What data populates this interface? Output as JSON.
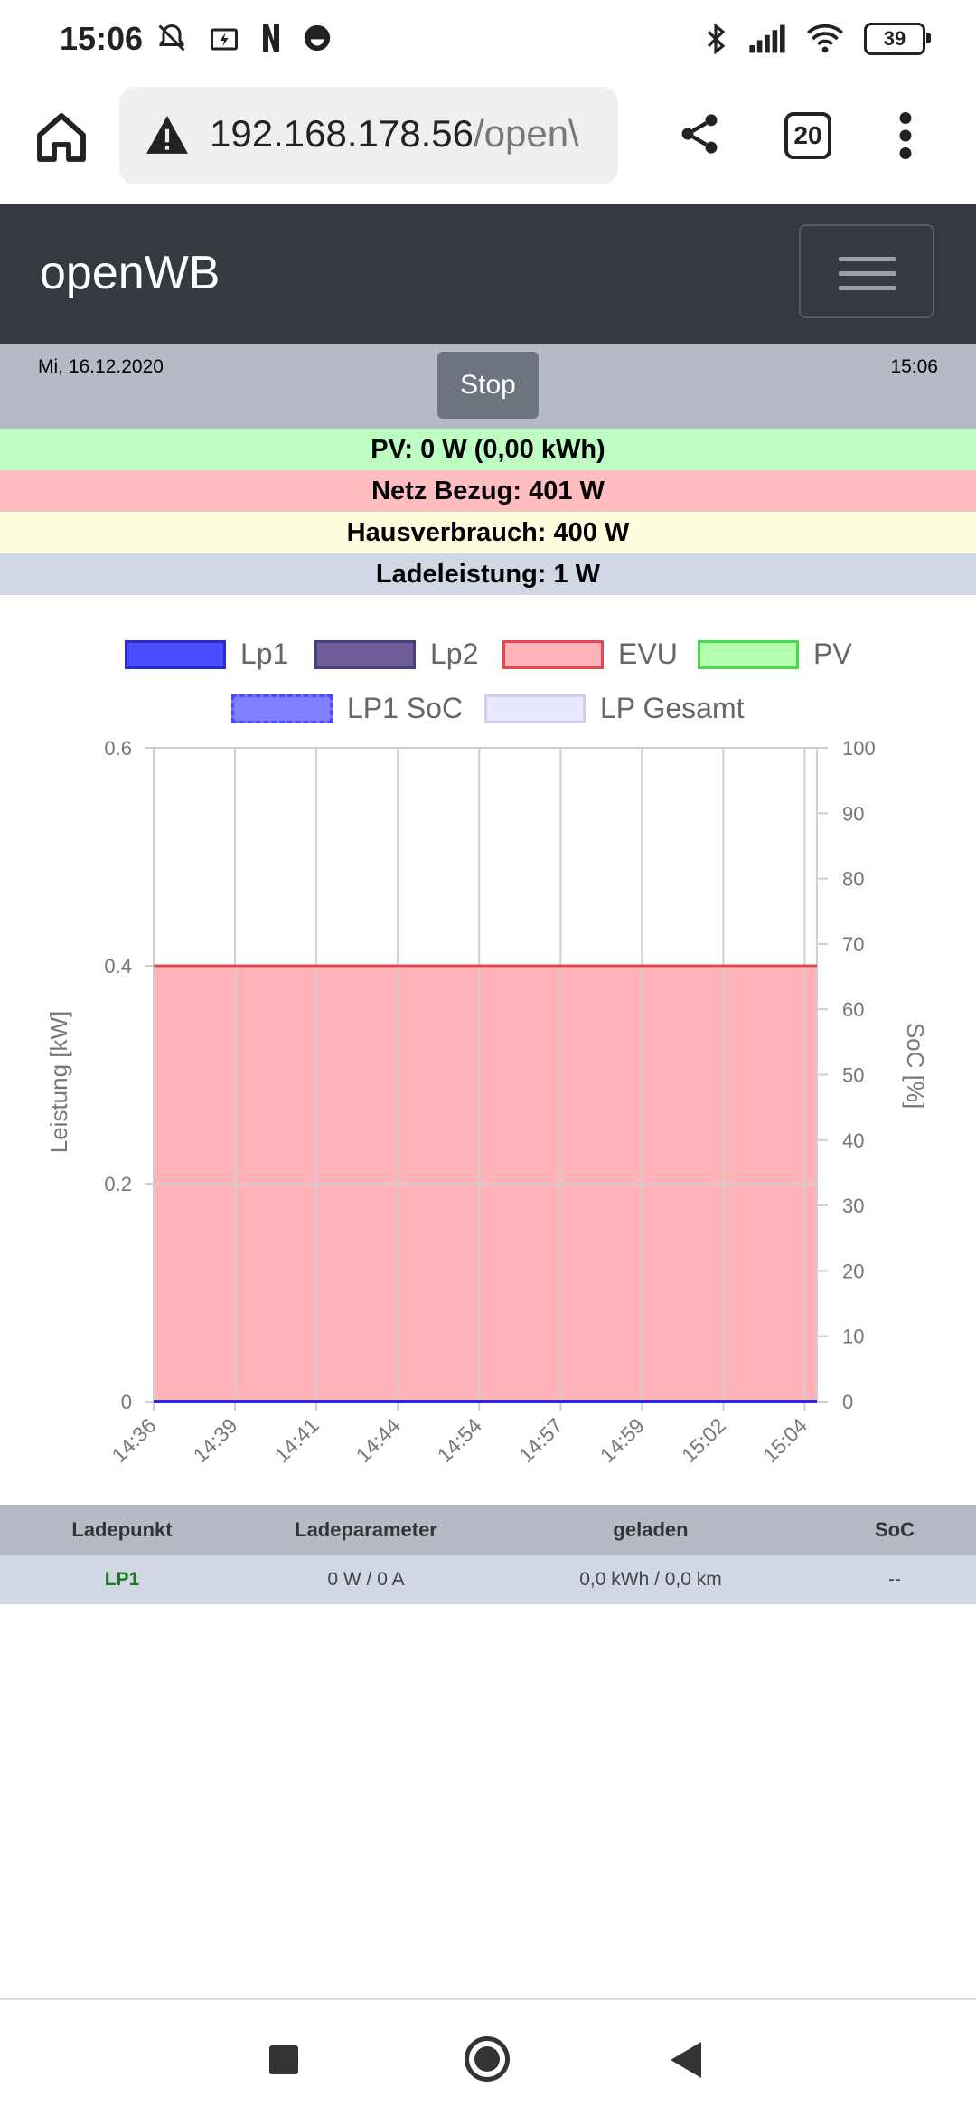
{
  "status_bar": {
    "time": "15:06",
    "battery": "39",
    "left_icons": [
      "muted-bell-icon",
      "battery-saver-icon",
      "netflix-icon",
      "app-icon"
    ],
    "right_icons": [
      "bluetooth-icon",
      "signal-icon",
      "wifi-icon"
    ]
  },
  "browser": {
    "url_main": "192.168.178.56",
    "url_rest": "/open\\",
    "tabs_count": "20"
  },
  "navbar": {
    "brand": "openWB"
  },
  "datebar": {
    "date": "Mi, 16.12.2020",
    "stop_label": "Stop",
    "time": "15:06"
  },
  "info": {
    "pv": "PV: 0 W (0,00 kWh)",
    "netz": "Netz Bezug: 401 W",
    "haus": "Hausverbrauch: 400 W",
    "lade": "Ladeleistung: 1 W"
  },
  "legend": [
    {
      "label": "Lp1",
      "fill": "#4b4bff",
      "border": "#2a2ad0",
      "dashed": false
    },
    {
      "label": "Lp2",
      "fill": "#6f5c99",
      "border": "#4b3c7a",
      "dashed": false
    },
    {
      "label": "EVU",
      "fill": "#ffb3b8",
      "border": "#e04a4f",
      "dashed": false
    },
    {
      "label": "PV",
      "fill": "#b4ffb0",
      "border": "#4bd84b",
      "dashed": false
    },
    {
      "label": "LP1 SoC",
      "fill": "#8080ff",
      "border": "#4b4bff",
      "dashed": true
    },
    {
      "label": "LP Gesamt",
      "fill": "#e8e8ff",
      "border": "#d0d0e8",
      "dashed": false
    }
  ],
  "chart_data": {
    "type": "area",
    "x": [
      "14:36",
      "14:39",
      "14:41",
      "14:44",
      "14:54",
      "14:57",
      "14:59",
      "15:02",
      "15:04"
    ],
    "series": [
      {
        "name": "EVU",
        "values": [
          0.4,
          0.4,
          0.4,
          0.4,
          0.4,
          0.4,
          0.4,
          0.4,
          0.4
        ],
        "color": "#e04a4f",
        "fill": "#ffb3b8"
      },
      {
        "name": "Lp1",
        "values": [
          0,
          0,
          0,
          0,
          0,
          0,
          0,
          0,
          0
        ],
        "color": "#2a2ad0"
      }
    ],
    "ylabel": "Leistung [kW]",
    "y2label": "SoC [%]",
    "ylim": [
      0,
      0.6
    ],
    "y2lim": [
      0,
      100
    ],
    "yticks": [
      "0",
      "0.2",
      "0.4",
      "0.6"
    ],
    "y2ticks": [
      "0",
      "10",
      "20",
      "30",
      "40",
      "50",
      "60",
      "70",
      "80",
      "90",
      "100"
    ],
    "grid": true
  },
  "table": {
    "headers": [
      "Ladepunkt",
      "Ladeparameter",
      "geladen",
      "SoC"
    ],
    "row": [
      "LP1",
      "0 W / 0 A",
      "0,0 kWh / 0,0 km",
      "--"
    ]
  }
}
